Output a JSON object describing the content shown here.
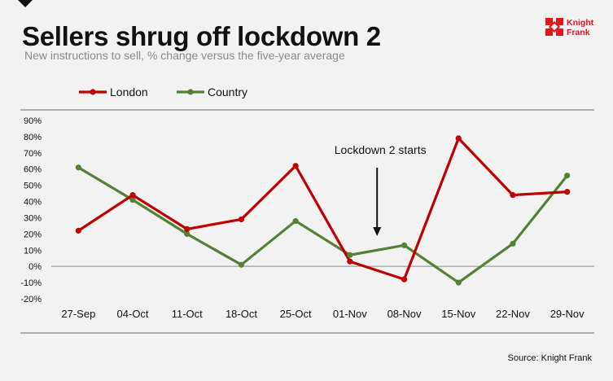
{
  "header": {
    "title": "Sellers shrug off lockdown 2",
    "subtitle": "New instructions to sell, % change versus the five-year average"
  },
  "logo": {
    "line1": "Knight",
    "line2": "Frank",
    "color": "#e3171b"
  },
  "footer": {
    "source": "Source: Knight Frank"
  },
  "chart_data": {
    "type": "line",
    "title": "Sellers shrug off lockdown 2",
    "subtitle": "New instructions to sell, % change versus the five-year average",
    "xlabel": "",
    "ylabel": "",
    "categories": [
      "27-Sep",
      "04-Oct",
      "11-Oct",
      "18-Oct",
      "25-Oct",
      "01-Nov",
      "08-Nov",
      "15-Nov",
      "22-Nov",
      "29-Nov"
    ],
    "series": [
      {
        "name": "London",
        "color": "#c00000",
        "values": [
          22,
          44,
          23,
          29,
          62,
          3,
          -8,
          79,
          44,
          46
        ]
      },
      {
        "name": "Country",
        "color": "#548235",
        "values": [
          61,
          41,
          20,
          1,
          28,
          7,
          13,
          -10,
          14,
          56
        ]
      }
    ],
    "ylim": [
      -20,
      90
    ],
    "yticks": [
      -20,
      -10,
      0,
      10,
      20,
      30,
      40,
      50,
      60,
      70,
      80,
      90
    ],
    "ytick_labels": [
      "-20%",
      "-10%",
      "0%",
      "10%",
      "20%",
      "30%",
      "40%",
      "50%",
      "60%",
      "70%",
      "80%",
      "90%"
    ],
    "legend_position": "top-left",
    "annotation": {
      "text": "Lockdown 2 starts",
      "between": [
        "01-Nov",
        "08-Nov"
      ],
      "arrow": "down"
    }
  }
}
